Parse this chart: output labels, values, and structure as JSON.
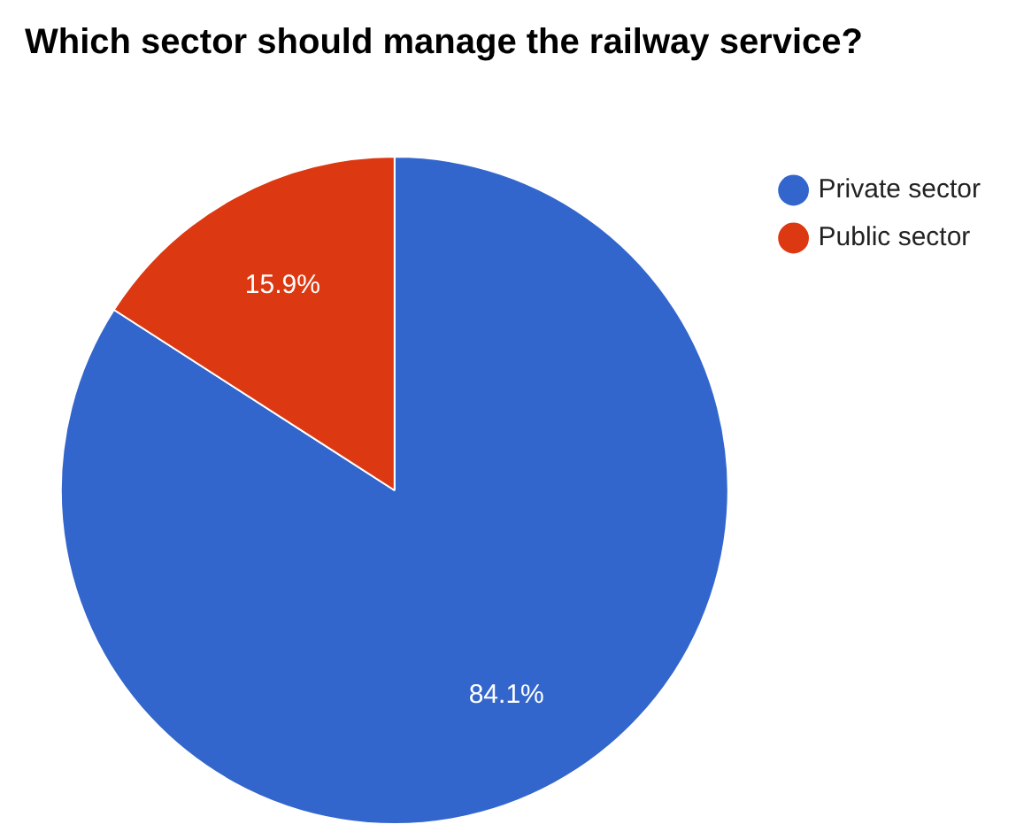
{
  "chart_data": {
    "type": "pie",
    "title": "Which sector should manage the railway service?",
    "categories": [
      "Private sector",
      "Public sector"
    ],
    "values": [
      84.1,
      15.9
    ],
    "colors": [
      "#3366cc",
      "#dc3912"
    ],
    "value_labels": [
      "84.1%",
      "15.9%"
    ],
    "legend": "top right"
  }
}
